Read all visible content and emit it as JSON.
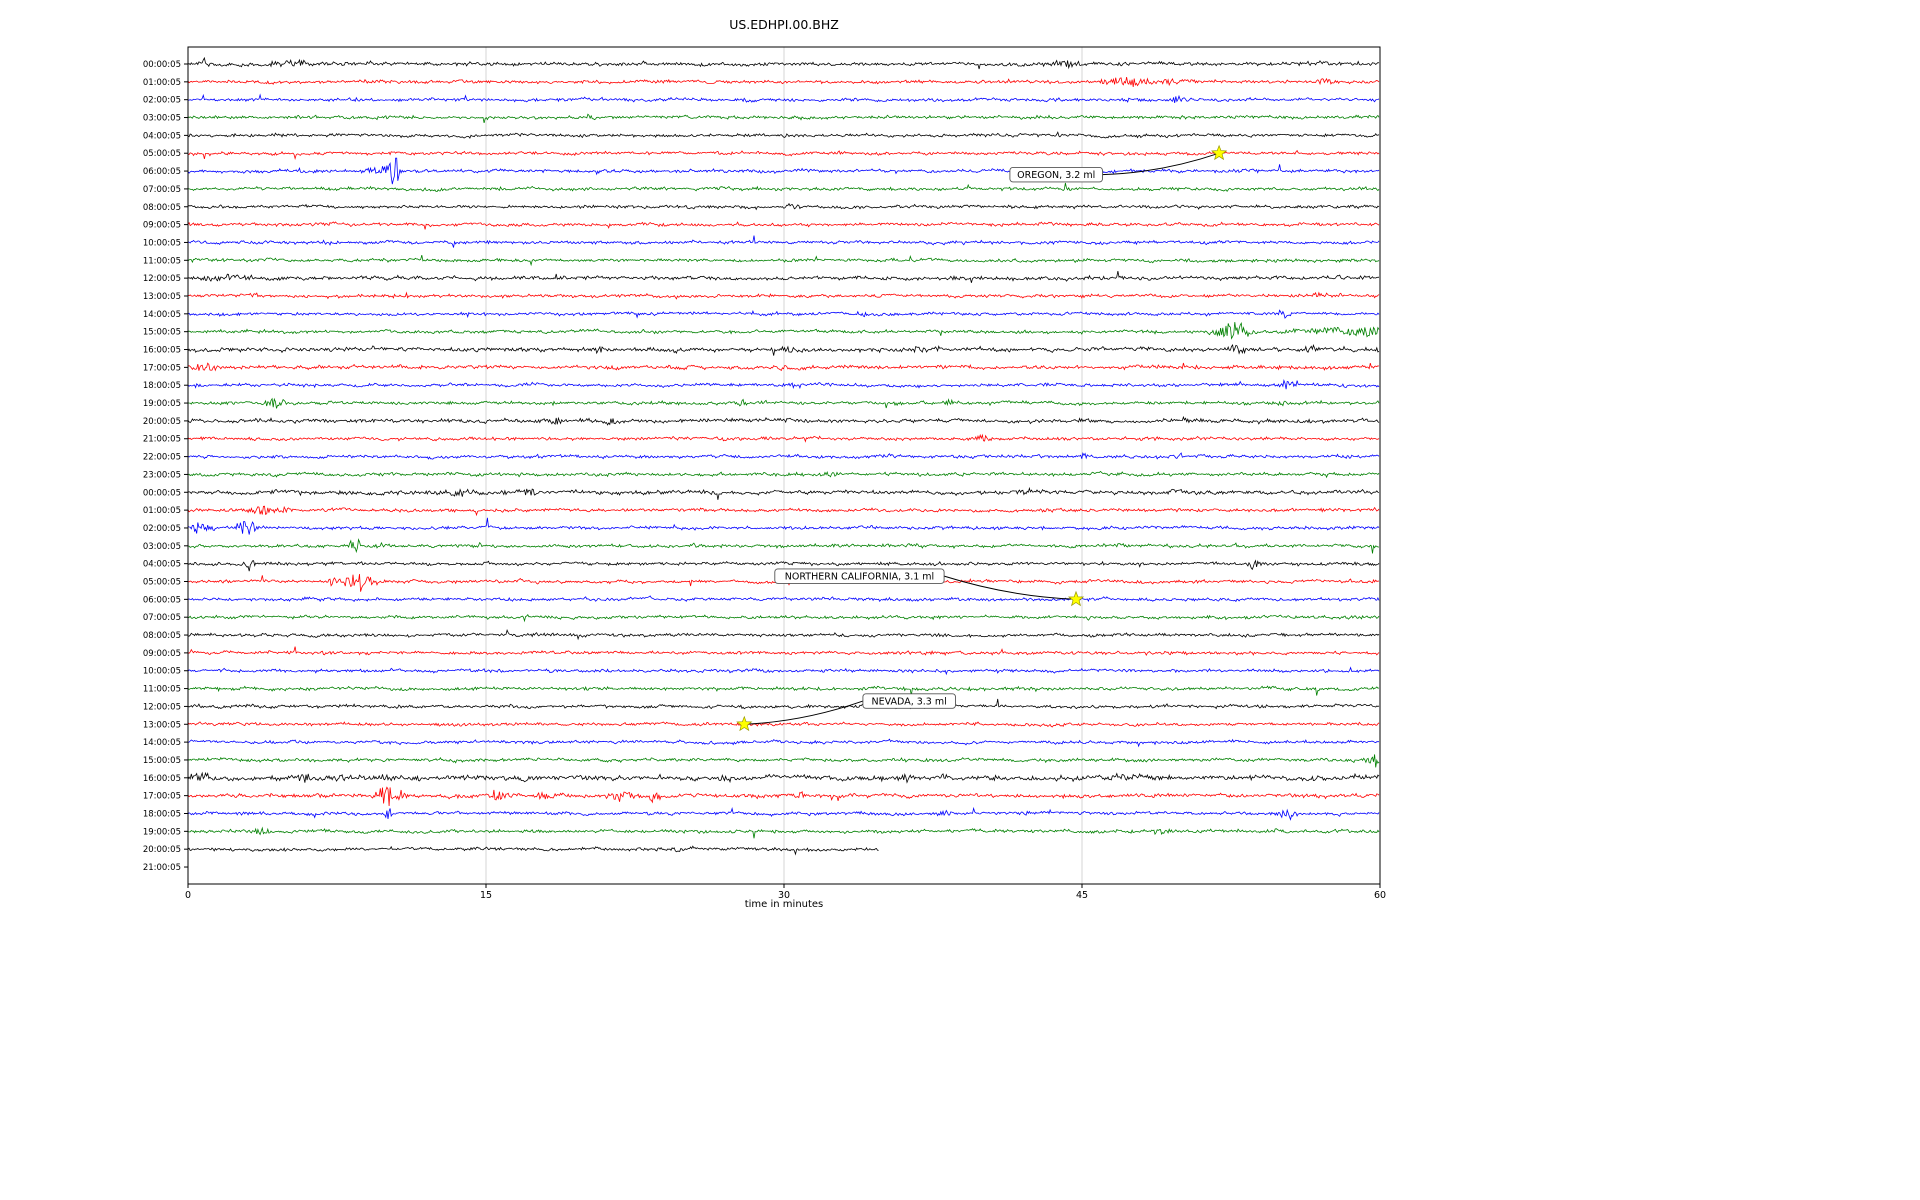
{
  "chart_data": {
    "type": "line",
    "variant": "helicorder-seismogram-dayplot",
    "title": "US.EDHPI.00.BHZ",
    "xlabel": "time in minutes",
    "x_range": [
      0,
      60
    ],
    "x_ticks": [
      0,
      15,
      30,
      45,
      60
    ],
    "grid": {
      "vertical_ticks": [
        15,
        30,
        45
      ],
      "color": "#cccccc"
    },
    "trace_colors_cycle": [
      "#000000",
      "#ff0000",
      "#0000ff",
      "#008000"
    ],
    "row_labels": [
      "00:00:05",
      "01:00:05",
      "02:00:05",
      "03:00:05",
      "04:00:05",
      "05:00:05",
      "06:00:05",
      "07:00:05",
      "08:00:05",
      "09:00:05",
      "10:00:05",
      "11:00:05",
      "12:00:05",
      "13:00:05",
      "14:00:05",
      "15:00:05",
      "16:00:05",
      "17:00:05",
      "18:00:05",
      "19:00:05",
      "20:00:05",
      "21:00:05",
      "22:00:05",
      "23:00:05",
      "00:00:05",
      "01:00:05",
      "02:00:05",
      "03:00:05",
      "04:00:05",
      "05:00:05",
      "06:00:05",
      "07:00:05",
      "08:00:05",
      "09:00:05",
      "10:00:05",
      "11:00:05",
      "12:00:05",
      "13:00:05",
      "14:00:05",
      "15:00:05",
      "16:00:05",
      "17:00:05",
      "18:00:05",
      "19:00:05",
      "20:00:05",
      "21:00:05"
    ],
    "row_end_minutes_default": 60,
    "row_end_minutes_overrides": {
      "44": 34.8,
      "45": 0
    },
    "row_noise_amp_overrides": {
      "0": 1.15,
      "12": 1.15,
      "16": 1.3,
      "17": 1.15,
      "20": 1.2,
      "24": 1.25,
      "40": 1.55,
      "41": 1.25
    },
    "events": [
      {
        "label": "OREGON, 3.2 ml",
        "row_index": 5,
        "x_minutes": 51.9,
        "label_x_minutes": 43.7,
        "label_row_position": 6.2,
        "marker": "yellow-star",
        "marker_color": "#ffff00"
      },
      {
        "label": "NORTHERN CALIFORNIA, 3.1 ml",
        "row_index": 30,
        "x_minutes": 44.7,
        "label_x_minutes": 33.8,
        "label_row_position": 28.7,
        "marker": "yellow-star",
        "marker_color": "#ffff00"
      },
      {
        "label": "NEVADA, 3.3 ml",
        "row_index": 37,
        "x_minutes": 28.0,
        "label_x_minutes": 36.3,
        "label_row_position": 35.7,
        "marker": "yellow-star",
        "marker_color": "#ffff00"
      }
    ],
    "noise_bursts": [
      [
        0,
        0.9,
        0.2,
        3.5
      ],
      [
        0,
        5.5,
        1.2,
        1.4
      ],
      [
        0,
        44,
        0.8,
        1.8
      ],
      [
        1,
        47.3,
        1.4,
        2.0
      ],
      [
        1,
        49.6,
        0.7,
        1.8
      ],
      [
        1,
        57.2,
        0.5,
        1.6
      ],
      [
        2,
        49.8,
        0.3,
        2.2
      ],
      [
        2,
        28.2,
        0.3,
        1.4
      ],
      [
        3,
        20.2,
        0.3,
        1.2
      ],
      [
        6,
        10.3,
        0.35,
        8.5
      ],
      [
        6,
        9.6,
        0.5,
        2.5
      ],
      [
        8,
        30.5,
        0.4,
        1.4
      ],
      [
        12,
        2.0,
        1.5,
        1.2
      ],
      [
        12,
        18.6,
        0.4,
        1.4
      ],
      [
        13,
        57.0,
        0.4,
        1.4
      ],
      [
        14,
        55.2,
        0.4,
        2.0
      ],
      [
        14,
        34.0,
        0.3,
        1.4
      ],
      [
        15,
        52.6,
        0.9,
        4.5
      ],
      [
        15,
        57.8,
        2.2,
        1.8
      ],
      [
        15,
        59.8,
        0.8,
        2.2
      ],
      [
        16,
        9.2,
        0.4,
        1.8
      ],
      [
        16,
        20.7,
        0.3,
        1.7
      ],
      [
        16,
        30.3,
        0.3,
        1.4
      ],
      [
        16,
        36.8,
        0.3,
        1.9
      ],
      [
        16,
        52.9,
        0.5,
        2.0
      ],
      [
        16,
        56.6,
        0.4,
        1.7
      ],
      [
        17,
        0.8,
        0.6,
        2.2
      ],
      [
        17,
        25.2,
        0.3,
        1.9
      ],
      [
        17,
        30.0,
        0.3,
        1.7
      ],
      [
        18,
        55.3,
        0.4,
        2.3
      ],
      [
        18,
        30.6,
        0.3,
        1.4
      ],
      [
        19,
        4.4,
        0.5,
        2.3
      ],
      [
        19,
        27.9,
        0.4,
        1.7
      ],
      [
        19,
        38.3,
        0.4,
        1.7
      ],
      [
        19,
        55.1,
        0.3,
        1.4
      ],
      [
        20,
        18.5,
        0.4,
        1.9
      ],
      [
        20,
        21.3,
        0.4,
        1.8
      ],
      [
        20,
        13.1,
        0.3,
        1.4
      ],
      [
        21,
        40.0,
        0.3,
        1.9
      ],
      [
        22,
        45.1,
        0.3,
        1.4
      ],
      [
        22,
        49.9,
        0.3,
        1.4
      ],
      [
        23,
        32.1,
        0.5,
        1.4
      ],
      [
        24,
        13.7,
        0.6,
        1.9
      ],
      [
        24,
        17.4,
        0.5,
        1.7
      ],
      [
        24,
        42.1,
        0.4,
        1.4
      ],
      [
        25,
        3.8,
        0.8,
        2.3
      ],
      [
        25,
        4.9,
        0.3,
        1.9
      ],
      [
        26,
        2.9,
        0.5,
        4.2
      ],
      [
        26,
        0.6,
        0.9,
        2.3
      ],
      [
        27,
        8.4,
        0.3,
        3.8
      ],
      [
        27,
        25.6,
        0.2,
        1.4
      ],
      [
        28,
        3.1,
        0.25,
        3.3
      ],
      [
        28,
        53.7,
        0.3,
        2.4
      ],
      [
        29,
        8.6,
        0.7,
        4.8
      ],
      [
        29,
        7.3,
        0.4,
        1.9
      ],
      [
        39,
        59.7,
        0.4,
        4.6
      ],
      [
        40,
        0.6,
        0.6,
        2.3
      ],
      [
        40,
        5.9,
        0.8,
        1.7
      ],
      [
        40,
        10.1,
        0.5,
        1.4
      ],
      [
        40,
        36.2,
        0.3,
        2.1
      ],
      [
        40,
        47.0,
        0.8,
        1.7
      ],
      [
        40,
        27.1,
        0.4,
        1.3
      ],
      [
        41,
        10.1,
        0.7,
        4.8
      ],
      [
        41,
        15.6,
        0.4,
        2.8
      ],
      [
        41,
        18.1,
        0.5,
        1.9
      ],
      [
        41,
        21.8,
        0.6,
        2.4
      ],
      [
        41,
        23.6,
        0.4,
        1.9
      ],
      [
        41,
        28.6,
        0.3,
        1.4
      ],
      [
        41,
        30.8,
        0.3,
        1.4
      ],
      [
        42,
        10.1,
        0.3,
        3.2
      ],
      [
        42,
        38.1,
        0.4,
        1.4
      ],
      [
        42,
        42.2,
        0.3,
        1.4
      ],
      [
        42,
        55.4,
        0.4,
        2.8
      ],
      [
        43,
        3.6,
        0.5,
        1.7
      ],
      [
        43,
        49.1,
        0.6,
        1.5
      ],
      [
        43,
        54.9,
        0.4,
        1.4
      ],
      [
        44,
        24.6,
        0.4,
        1.4
      ]
    ]
  }
}
